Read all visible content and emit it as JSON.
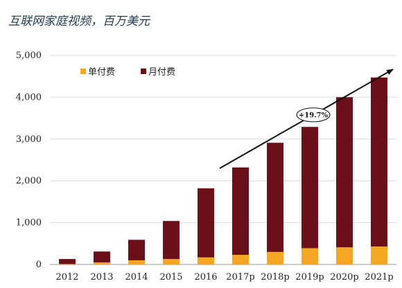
{
  "chart_data": {
    "type": "bar",
    "title": "互联网家庭视频，百万美元",
    "categories": [
      "2012",
      "2013",
      "2014",
      "2015",
      "2016",
      "2017p",
      "2018p",
      "2019p",
      "2020p",
      "2021p"
    ],
    "series": [
      {
        "name": "单付费",
        "values": [
          10,
          50,
          100,
          130,
          170,
          230,
          300,
          390,
          410,
          430
        ],
        "color": "#F5A623"
      },
      {
        "name": "月付费",
        "values": [
          120,
          260,
          490,
          910,
          1650,
          2090,
          2610,
          2900,
          3590,
          4040
        ],
        "color": "#6B0F1A"
      }
    ],
    "stacked": true,
    "ylim": [
      0,
      5000
    ],
    "yticks": [
      0,
      1000,
      2000,
      3000,
      4000,
      5000
    ],
    "ytick_labels": [
      "0",
      "1,000",
      "2,000",
      "3,000",
      "4,000",
      "5,000"
    ],
    "grid": true,
    "legend": "top-left",
    "annotation": {
      "text": "+19.7%",
      "from": {
        "x": "2016",
        "y": 2250
      },
      "to": {
        "x": "2021p",
        "y": 4600
      }
    }
  }
}
